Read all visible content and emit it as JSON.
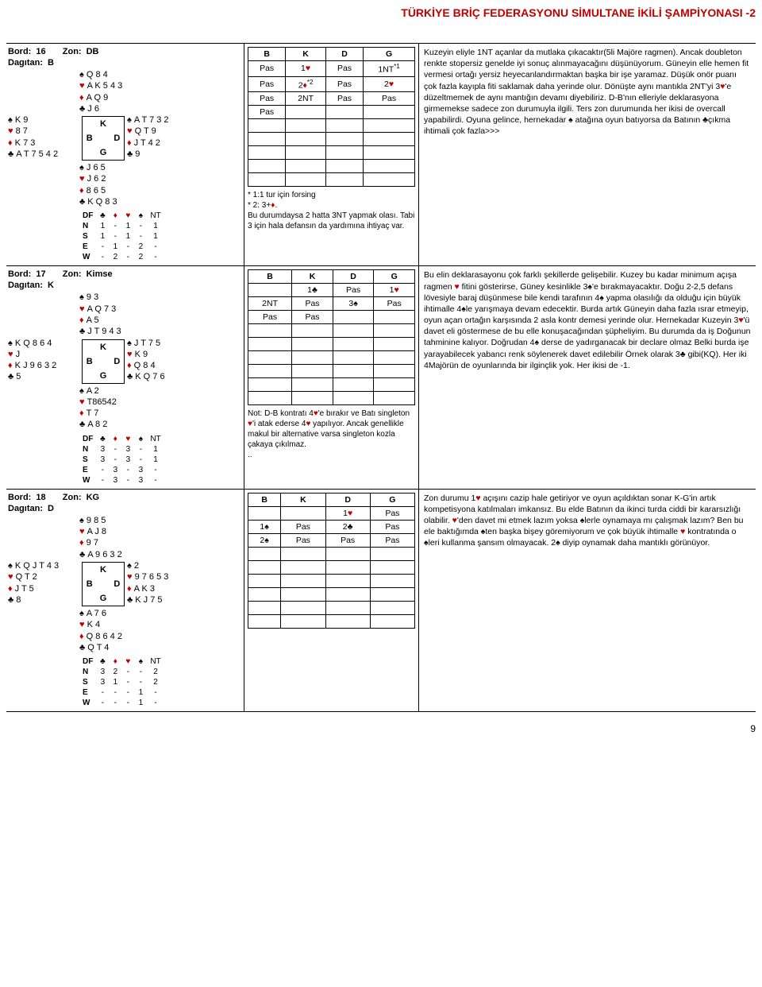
{
  "page": {
    "title": "TÜRKİYE BRİÇ FEDERASYONU SİMULTANE İKİLİ ŞAMPİYONASI -2",
    "number": "9"
  },
  "suits": {
    "spade": "♠",
    "heart": "♥",
    "diamond": "♦",
    "club": "♣"
  },
  "compass": {
    "N": "K",
    "W": "B",
    "E": "D",
    "S": "G"
  },
  "df_header": {
    "label": "DF",
    "nt": "NT",
    "n": "N",
    "s": "S",
    "e": "E",
    "w": "W"
  },
  "boards": [
    {
      "bord_label": "Bord:",
      "bord": "16",
      "zon_label": "Zon:",
      "zon": "DB",
      "dag_label": "Dagıtan:",
      "dag": "B",
      "north": {
        "s": "Q 8 4",
        "h": "A K 5 4 3",
        "d": "A Q 9",
        "c": "J 6"
      },
      "west": {
        "s": "K 9",
        "h": "8 7",
        "d": "K 7 3",
        "c": "A T 7 5 4 2"
      },
      "east": {
        "s": "A T 7 3 2",
        "h": "Q T 9",
        "d": "J T 4 2",
        "c": "9"
      },
      "south": {
        "s": "J 6 5",
        "h": "J 6 2",
        "d": "8 6 5",
        "c": "K Q 8 3"
      },
      "df": {
        "N": [
          "1",
          "-",
          "1",
          "-",
          "1"
        ],
        "S": [
          "1",
          "-",
          "1",
          "-",
          "1"
        ],
        "E": [
          "-",
          "1",
          "-",
          "2",
          "-"
        ],
        "W": [
          "-",
          "2",
          "-",
          "2",
          "-"
        ]
      },
      "bidding": {
        "hdr": [
          "B",
          "K",
          "D",
          "G"
        ],
        "rows": [
          [
            "Pas",
            "1♥",
            "Pas",
            "1NT"
          ],
          [
            "Pas",
            "2♦",
            "Pas",
            "2♥"
          ],
          [
            "Pas",
            "2NT",
            "Pas",
            "Pas"
          ],
          [
            "Pas",
            "",
            "",
            ""
          ],
          [
            "",
            "",
            "",
            ""
          ],
          [
            "",
            "",
            "",
            ""
          ],
          [
            "",
            "",
            "",
            ""
          ],
          [
            "",
            "",
            "",
            ""
          ],
          [
            "",
            "",
            "",
            ""
          ]
        ],
        "sup": {
          "0-3": "*1",
          "1-1": "*2"
        }
      },
      "note": " * 1:1 tur için forsing\n * 2: 3+♦.\n Bu durumdaysa 2 hatta 3NT yapmak olası. Tabi 3 için hala defansın da yardımına ihtiyaç var.",
      "commentary": " Kuzeyin eliyle 1NT açanlar da mutlaka çıkacaktır(5li Majöre ragmen). Ancak doubleton renkte stopersiz genelde iyi sonuç alınmayacağını düşünüyorum. Güneyin elle hemen fit vermesi ortağı yersiz heyecanlandırmaktan başka bir işe yaramaz. Düşük onör puanı çok fazla kayıpla fiti saklamak daha yerinde olur. Dönüşte aynı mantıkla 2NT'yi 3♥'e düzeltmemek de aynı mantığın devamı diyebiliriz. D-B'nın elleriyle deklarasyona girmemekse sadece zon durumuyla ilgili. Ters zon durumunda her ikisi de overcall yapabilirdi. Oyuna gelince, hernekadar ♠ atağına oyun batıyorsa da Batının ♣çıkma ihtimali çok fazla>>>"
    },
    {
      "bord_label": "Bord:",
      "bord": "17",
      "zon_label": "Zon:",
      "zon": "Kimse",
      "dag_label": "Dagıtan:",
      "dag": "K",
      "north": {
        "s": "9 3",
        "h": "A Q 7 3",
        "d": "A 5",
        "c": "J T 9 4 3"
      },
      "west": {
        "s": "K Q 8 6 4",
        "h": "J",
        "d": "K J 9 6 3 2",
        "c": "5"
      },
      "east": {
        "s": "J T 7 5",
        "h": "K 9",
        "d": "Q 8 4",
        "c": "K Q 7 6"
      },
      "south": {
        "s": "A 2",
        "h": "T86542",
        "d": "T 7",
        "c": "A 8 2"
      },
      "df": {
        "N": [
          "3",
          "-",
          "3",
          "-",
          "1"
        ],
        "S": [
          "3",
          "-",
          "3",
          "-",
          "1"
        ],
        "E": [
          "-",
          "3",
          "-",
          "3",
          "-"
        ],
        "W": [
          "-",
          "3",
          "-",
          "3",
          "-"
        ]
      },
      "bidding": {
        "hdr": [
          "B",
          "K",
          "D",
          "G"
        ],
        "rows": [
          [
            "",
            "1♣",
            "Pas",
            "1♥"
          ],
          [
            "2NT",
            "Pas",
            "3♠",
            "Pas"
          ],
          [
            "Pas",
            "Pas",
            "",
            ""
          ],
          [
            "",
            "",
            "",
            ""
          ],
          [
            "",
            "",
            "",
            ""
          ],
          [
            "",
            "",
            "",
            ""
          ],
          [
            "",
            "",
            "",
            ""
          ],
          [
            "",
            "",
            "",
            ""
          ],
          [
            "",
            "",
            "",
            ""
          ]
        ],
        "sup": {}
      },
      "note": " Not: D-B kontratı 4♥'e bırakır ve Batı singleton ♥'i atak ederse 4♥ yapılıyor. Ancak genellikle makul bir alternative varsa singleton kozla çakaya çıkılmaz.\n..",
      "commentary": "Bu elin deklarasayonu çok farklı şekillerde gelişebilir. Kuzey bu kadar minimum açışa ragmen ♥ fitini gösterirse, Güney kesinlikle 3♠'e bırakmayacaktır. Doğu 2-2,5 defans lövesiyle baraj düşünmese bile kendi tarafının 4♠ yapma olasılığı da olduğu için büyük ihtimalle 4♠le yarışmaya devam edecektir. Burda artık Güneyin daha fazla ısrar etmeyip, oyun açan ortağın karşısında 2 asla kontr demesi yerinde olur. Hernekadar Kuzeyin 3♥'ü davet eli göstermese de bu elle konuşacağından şüpheliyim. Bu durumda da iş Doğunun tahminine kalıyor. Doğrudan 4♠ derse de yadırganacak bir declare olmaz Belki burda işe yarayabilecek yabancı renk söylenerek davet edilebilir Örnek olarak 3♣ gibi(KQ). Her iki 4Majörün de oyunlarında bir ilginçlik yok. Her ikisi de -1."
    },
    {
      "bord_label": "Bord:",
      "bord": "18",
      "zon_label": "Zon:",
      "zon": "KG",
      "dag_label": "Dagıtan:",
      "dag": "D",
      "north": {
        "s": "9 8 5",
        "h": "A J 8",
        "d": "9 7",
        "c": "A 9 6 3 2"
      },
      "west": {
        "s": "K Q J T 4 3",
        "h": "Q T 2",
        "d": "J T 5",
        "c": "8"
      },
      "east": {
        "s": "2",
        "h": "9 7 6 5 3",
        "d": "A K 3",
        "c": "K J 7 5"
      },
      "south": {
        "s": "A 7 6",
        "h": "K 4",
        "d": "Q 8 6 4 2",
        "c": "Q T 4"
      },
      "df": {
        "N": [
          "3",
          "2",
          "-",
          "-",
          "2"
        ],
        "S": [
          "3",
          "1",
          "-",
          "-",
          "2"
        ],
        "E": [
          "-",
          "-",
          "-",
          "1",
          "-"
        ],
        "W": [
          "-",
          "-",
          "-",
          "1",
          "-"
        ]
      },
      "bidding": {
        "hdr": [
          "B",
          "K",
          "D",
          "G"
        ],
        "rows": [
          [
            "",
            "",
            "1♥",
            "Pas"
          ],
          [
            "1♠",
            "Pas",
            "2♣",
            "Pas"
          ],
          [
            "2♠",
            "Pas",
            "Pas",
            "Pas"
          ],
          [
            "",
            "",
            "",
            ""
          ],
          [
            "",
            "",
            "",
            ""
          ],
          [
            "",
            "",
            "",
            ""
          ],
          [
            "",
            "",
            "",
            ""
          ],
          [
            "",
            "",
            "",
            ""
          ],
          [
            "",
            "",
            "",
            ""
          ]
        ],
        "sup": {}
      },
      "note": "",
      "commentary": " Zon durumu 1♥ açışını cazip hale getiriyor ve oyun açıldıktan sonar K-G'in artık kompetisyona katılmaları imkansız. Bu elde Batının da ikinci turda ciddi bir kararsızlığı olabilir. ♥'den davet mi etmek lazım yoksa ♠lerle oynamaya mı çalışmak lazım? Ben bu ele baktığımda ♠ten başka bişey göremiyorum ve çok büyük ihtimalle ♥ kontratında o ♠leri kullanma şansım olmayacak. 2♠ diyip oynamak daha mantıklı görünüyor."
    }
  ]
}
